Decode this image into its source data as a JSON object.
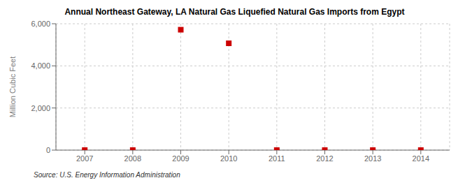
{
  "chart_data": {
    "type": "scatter",
    "title": "Annual Northeast Gateway, LA Natural Gas Liquefied Natural Gas Imports from Egypt",
    "ylabel": "Million Cubic Feet",
    "annotations": [
      "Source: U.S. Energy Information Administration"
    ],
    "x": [
      2007,
      2008,
      2009,
      2010,
      2011,
      2012,
      2013,
      2014
    ],
    "values": [
      0,
      0,
      5716,
      5072,
      0,
      0,
      0,
      0
    ],
    "color": "#cc0000",
    "marker": "square",
    "xlim": [
      2006.4,
      2014.6
    ],
    "xticks": [
      2007,
      2008,
      2009,
      2010,
      2011,
      2012,
      2013,
      2014
    ],
    "ylim": [
      0,
      6000
    ],
    "yticks": [
      0,
      {
        "value": 2000,
        "label": "2,000"
      },
      {
        "value": 4000,
        "label": "4,000"
      },
      {
        "value": 6000,
        "label": "6,000"
      }
    ],
    "grid": true
  }
}
